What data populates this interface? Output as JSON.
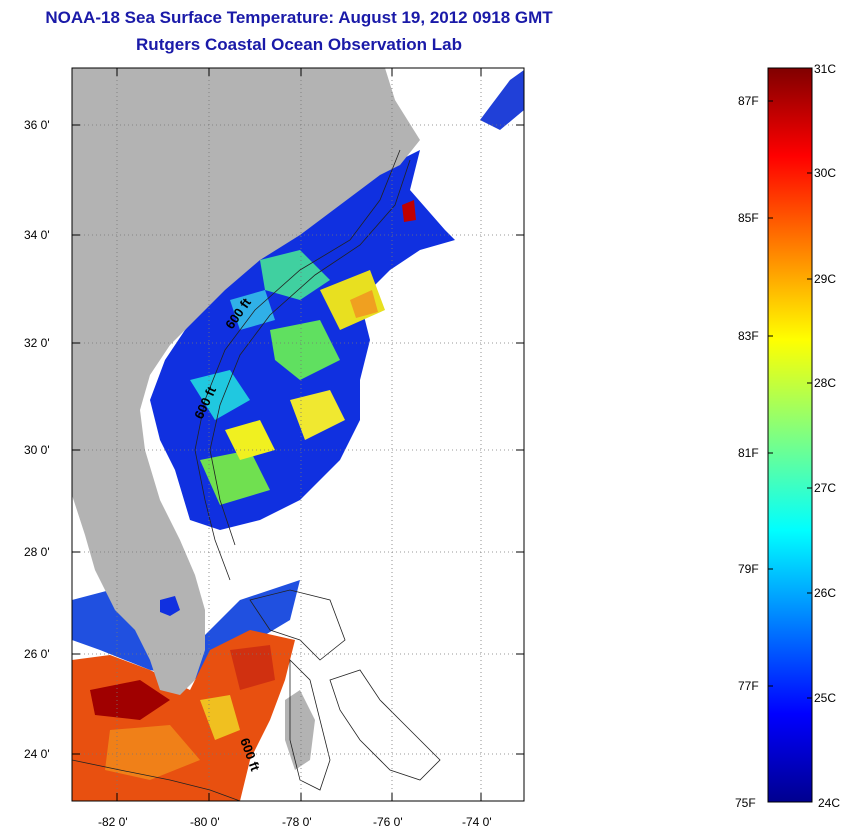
{
  "title": "NOAA-18 Sea Surface Temperature:  August 19, 2012 0918 GMT",
  "subtitle": "Rutgers Coastal Ocean Observation Lab",
  "map": {
    "lon_range": [
      -83,
      -73
    ],
    "lat_range": [
      23,
      37
    ],
    "lat_ticks": [
      "36 0'",
      "34 0'",
      "32 0'",
      "30 0'",
      "28 0'",
      "26 0'",
      "24 0'"
    ],
    "lon_ticks": [
      "-82 0'",
      "-80 0'",
      "-78 0'",
      "-76 0'",
      "-74 0'"
    ],
    "contour_labels": [
      "600 ft",
      "600 ft",
      "600 ft"
    ],
    "land_color": "#b3b3b3",
    "cloud_color": "#ffffff"
  },
  "colorbar": {
    "celsius_labels": [
      "31C",
      "30C",
      "29C",
      "28C",
      "27C",
      "26C",
      "25C",
      "24C"
    ],
    "fahrenheit_labels": [
      "87F",
      "85F",
      "83F",
      "81F",
      "79F",
      "77F",
      "75F"
    ],
    "range_celsius": [
      24,
      31
    ],
    "colormap": "jet"
  }
}
